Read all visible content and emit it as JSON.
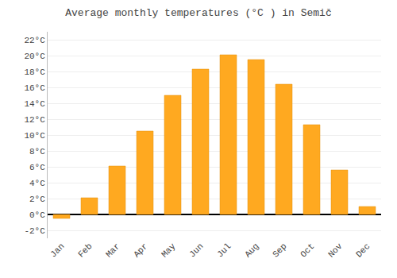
{
  "chart_data": {
    "type": "bar",
    "title": "Average monthly temperatures (°C ) in Semič",
    "categories": [
      "Jan",
      "Feb",
      "Mar",
      "Apr",
      "May",
      "Jun",
      "Jul",
      "Aug",
      "Sep",
      "Oct",
      "Nov",
      "Dec"
    ],
    "values": [
      -0.5,
      2.1,
      6.1,
      10.5,
      15.0,
      18.3,
      20.1,
      19.5,
      16.4,
      11.3,
      5.6,
      1.0
    ],
    "color": "#FFA920",
    "ylim": [
      -3,
      23
    ],
    "yticks": [
      {
        "value": -2,
        "label": "-2°C"
      },
      {
        "value": 0,
        "label": "0°C"
      },
      {
        "value": 2,
        "label": "2°C"
      },
      {
        "value": 4,
        "label": "4°C"
      },
      {
        "value": 6,
        "label": "6°C"
      },
      {
        "value": 8,
        "label": "8°C"
      },
      {
        "value": 10,
        "label": "10°C"
      },
      {
        "value": 12,
        "label": "12°C"
      },
      {
        "value": 14,
        "label": "14°C"
      },
      {
        "value": 16,
        "label": "16°C"
      },
      {
        "value": 18,
        "label": "18°C"
      },
      {
        "value": 20,
        "label": "20°C"
      },
      {
        "value": 22,
        "label": "22°C"
      }
    ],
    "grid": true
  }
}
